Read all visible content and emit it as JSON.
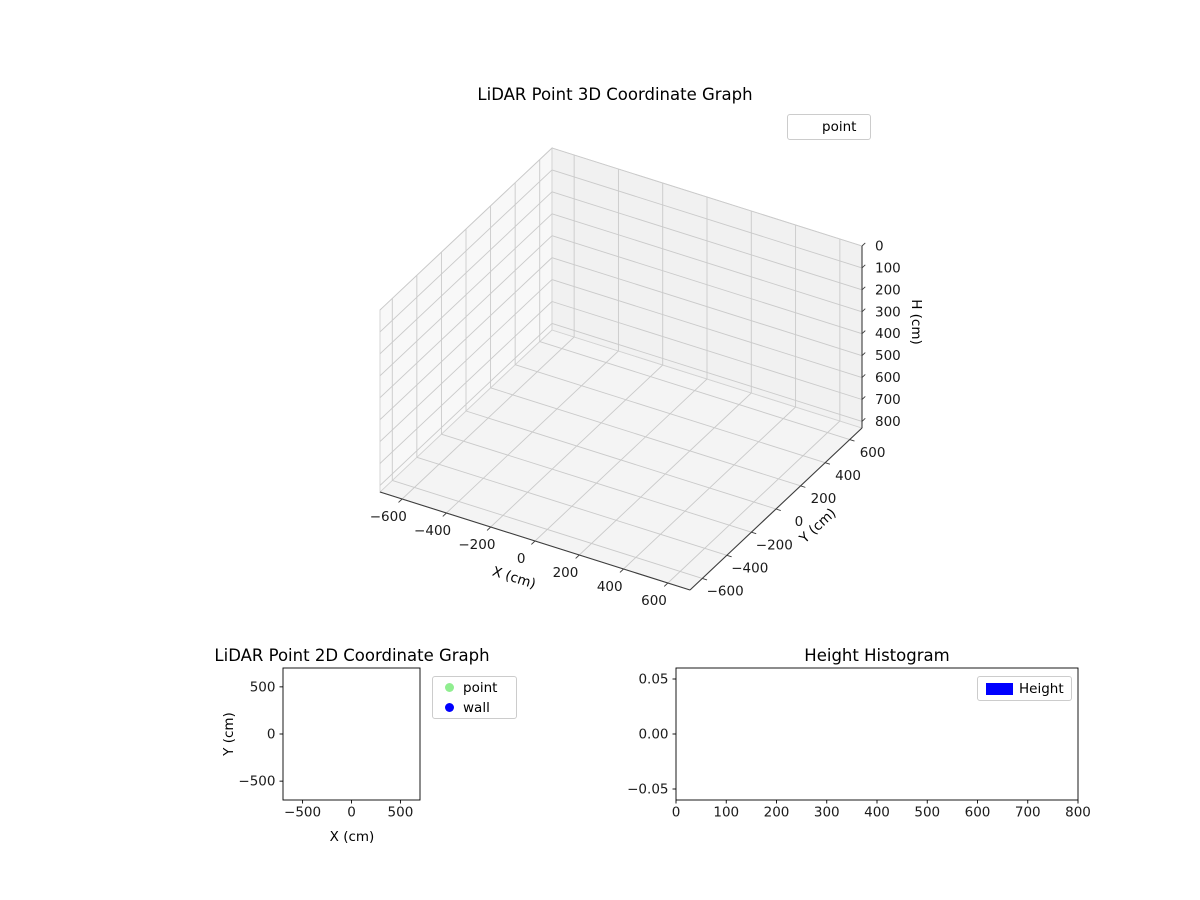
{
  "figure": {
    "background": "#ffffff"
  },
  "chart_data": [
    {
      "id": "plot3d",
      "type": "scatter3d",
      "title": "LiDAR Point 3D Coordinate Graph",
      "xlabel": "X (cm)",
      "ylabel": "Y (cm)",
      "zlabel": "H (cm)",
      "xlim": [
        -700,
        700
      ],
      "ylim": [
        -700,
        700
      ],
      "zlim": [
        0,
        830
      ],
      "zaxis_inverted": true,
      "xticks": [
        -600,
        -400,
        -200,
        0,
        200,
        400,
        600
      ],
      "yticks": [
        -600,
        -400,
        -200,
        0,
        200,
        400,
        600
      ],
      "zticks": [
        0,
        100,
        200,
        300,
        400,
        500,
        600,
        700,
        800
      ],
      "grid": true,
      "legend": {
        "location": "upper right",
        "entries": [
          {
            "label": "point",
            "marker": "none"
          }
        ]
      },
      "series": [
        {
          "name": "point",
          "points": []
        }
      ]
    },
    {
      "id": "plot2d",
      "type": "scatter",
      "title": "LiDAR Point 2D Coordinate Graph",
      "xlabel": "X (cm)",
      "ylabel": "Y (cm)",
      "xlim": [
        -700,
        700
      ],
      "ylim": [
        -700,
        700
      ],
      "xticks": [
        -500,
        0,
        500
      ],
      "yticks": [
        -500,
        0,
        500
      ],
      "grid": false,
      "legend": {
        "location": "outside upper right",
        "entries": [
          {
            "label": "point",
            "marker": "circle",
            "color": "#90ee90"
          },
          {
            "label": "wall",
            "marker": "circle",
            "color": "#0000ff"
          }
        ]
      },
      "series": [
        {
          "name": "point",
          "points": []
        },
        {
          "name": "wall",
          "points": []
        }
      ]
    },
    {
      "id": "hist",
      "type": "bar",
      "title": "Height Histogram",
      "xlabel": "",
      "ylabel": "",
      "xlim": [
        0,
        800
      ],
      "ylim": [
        -0.06,
        0.06
      ],
      "xticks": [
        0,
        100,
        200,
        300,
        400,
        500,
        600,
        700,
        800
      ],
      "yticks": [
        -0.05,
        0,
        0.05
      ],
      "ytick_decimals": 2,
      "grid": false,
      "legend": {
        "location": "upper right",
        "entries": [
          {
            "label": "Height",
            "marker": "rect",
            "color": "#0000ff"
          }
        ]
      },
      "values": []
    }
  ]
}
